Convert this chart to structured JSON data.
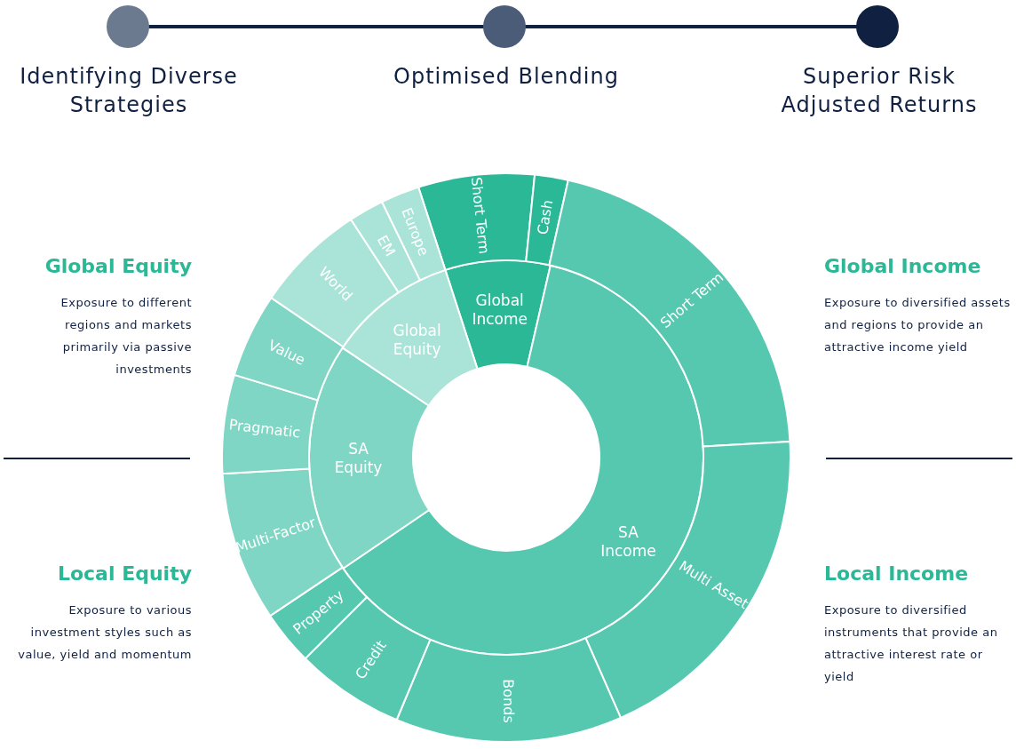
{
  "chart_data": [
    {
      "type": "donut",
      "categories": [
        "Global Income",
        "SA Income",
        "SA Equity",
        "Global Equity"
      ],
      "values": [
        8.6,
        61.9,
        18.9,
        10.6
      ],
      "colors": [
        "#2bb897",
        "#56c8b0",
        "#80d6c4",
        "#aae3d7"
      ],
      "annotations": [
        "Identifying Diverse Strategies",
        "Optimised Blending",
        "Superior Risk Adjusted Returns",
        "Global Equity",
        "Exposure to different regions and markets primarily via passive investments",
        "Global Income",
        "Exposure to diversified assets and regions to provide an attractive income yield",
        "Local Equity",
        "Exposure to various investment styles such as value, yield and momentum",
        "Local Income",
        "Exposure to diversified instruments that provide an attractive interest rate or yield"
      ]
    },
    {
      "type": "donut",
      "categories": [
        "Short Term",
        "Cash",
        "Short Term",
        "Multi Asset",
        "Bonds",
        "Credit",
        "Property",
        "Multi-Factor",
        "Pragmatic",
        "Value",
        "World",
        "EM",
        "Europe"
      ],
      "values": [
        6.6,
        1.9,
        20.6,
        19.3,
        12.9,
        6.2,
        3.1,
        8.5,
        5.6,
        4.8,
        6.3,
        2.0,
        2.2
      ],
      "colors": [
        "#2bb897",
        "#2bb897",
        "#56c8b0",
        "#56c8b0",
        "#56c8b0",
        "#56c8b0",
        "#56c8b0",
        "#80d6c4",
        "#80d6c4",
        "#80d6c4",
        "#aae3d7",
        "#aae3d7",
        "#aae3d7"
      ]
    }
  ]
}
